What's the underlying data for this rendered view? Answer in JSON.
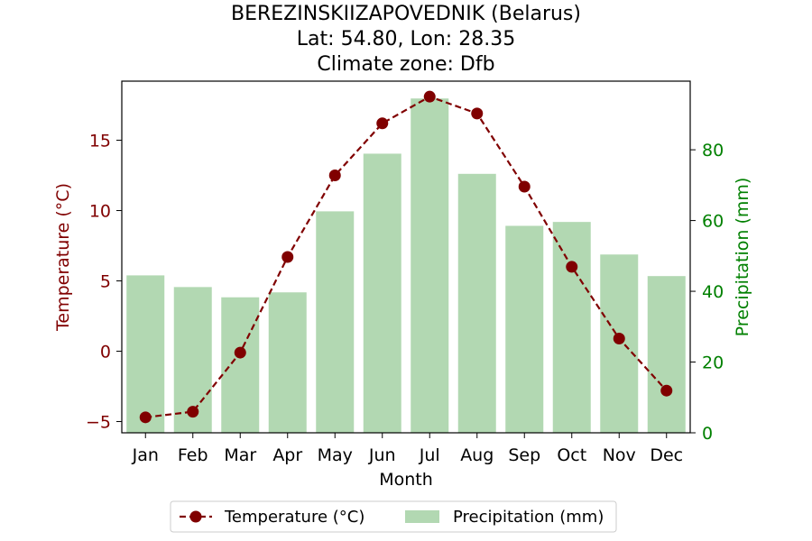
{
  "chart_data": {
    "type": "bar+line",
    "title_lines": [
      "BEREZINSKIIZAPOVEDNIK (Belarus)",
      "Lat: 54.80, Lon: 28.35",
      "Climate zone: Dfb"
    ],
    "xlabel": "Month",
    "ylabel_left": "Temperature (°C)",
    "ylabel_right": "Precipitation (mm)",
    "categories": [
      "Jan",
      "Feb",
      "Mar",
      "Apr",
      "May",
      "Jun",
      "Jul",
      "Aug",
      "Sep",
      "Oct",
      "Nov",
      "Dec"
    ],
    "temperature": {
      "name": "Temperature (°C)",
      "color": "#800000",
      "values": [
        -4.7,
        -4.3,
        -0.1,
        6.7,
        12.5,
        16.2,
        18.1,
        16.9,
        11.7,
        6.0,
        0.9,
        -2.8
      ]
    },
    "precipitation": {
      "name": "Precipitation (mm)",
      "color": "#b2d8b2",
      "values": [
        44.5,
        41.2,
        38.3,
        39.7,
        62.6,
        78.9,
        94.5,
        73.2,
        58.5,
        59.6,
        50.4,
        44.3
      ]
    },
    "ylim_left": [
      -5.8,
      19.2
    ],
    "ylim_right": [
      0,
      99.4
    ],
    "yticks_left": [
      -5,
      0,
      5,
      10,
      15
    ],
    "yticks_right": [
      0,
      20,
      40,
      60,
      80
    ],
    "left_axis_color": "#800000",
    "right_axis_color": "#008000",
    "legend_position": "bottom-center",
    "grid": false
  }
}
